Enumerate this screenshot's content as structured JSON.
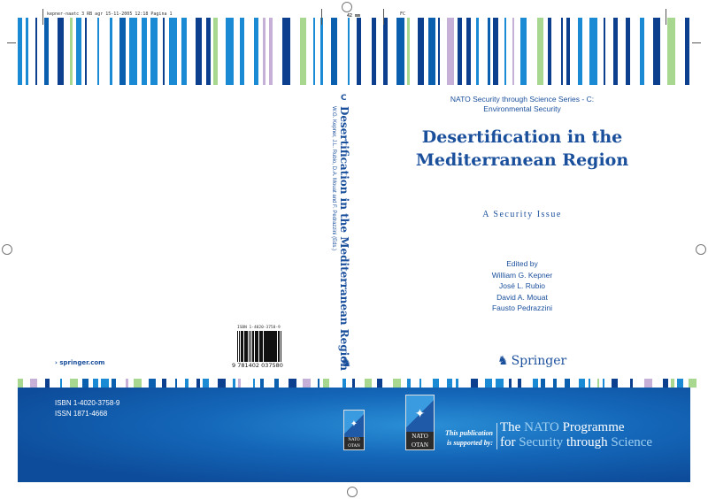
{
  "slug": "kepner-naatc 3 RB agr 15-11-2005 12:18 Pagina 1",
  "spine_width": "42 mm",
  "fc_mark": "FC",
  "colors": {
    "dark_blue": "#0d3f8f",
    "mid_blue": "#0a5fae",
    "light_blue": "#1a8ad4",
    "green": "#a8d890",
    "lilac": "#c7b0d8",
    "band": "#1466b8"
  },
  "spine": {
    "series_letter": "C",
    "title": "Desertification in the Mediterranean Region",
    "editors": "W.G. Kepner, J.L. Rubio, D.A. Mouat and F. Pedrazzini (Eds.)"
  },
  "front": {
    "series": [
      "NATO Security through Science Series - C:",
      "Environmental Security"
    ],
    "title": [
      "Desertification in the",
      "Mediterranean Region"
    ],
    "subtitle": "A Security Issue",
    "edited_by": "Edited by",
    "editors": [
      "William G. Kepner",
      "José L. Rubio",
      "David A. Mouat",
      "Fausto Pedrazzini"
    ],
    "publisher": "Springer"
  },
  "back": {
    "website": "springer.com",
    "isbn": "ISBN 1-4020-3758-9",
    "issn": "ISSN 1871-4668",
    "barcode_top": "ISBN 1-4020-3758-9",
    "barcode_number": "9 781402 037580"
  },
  "nato": {
    "logo_text_top": "NATO",
    "logo_text_bottom": "OTAN",
    "supported_line1": "This publication",
    "supported_line2": "is supported by:",
    "programme_line1": [
      "The ",
      "NATO",
      " Programme"
    ],
    "programme_line2": [
      "for ",
      "Security",
      " through ",
      "Science"
    ]
  }
}
